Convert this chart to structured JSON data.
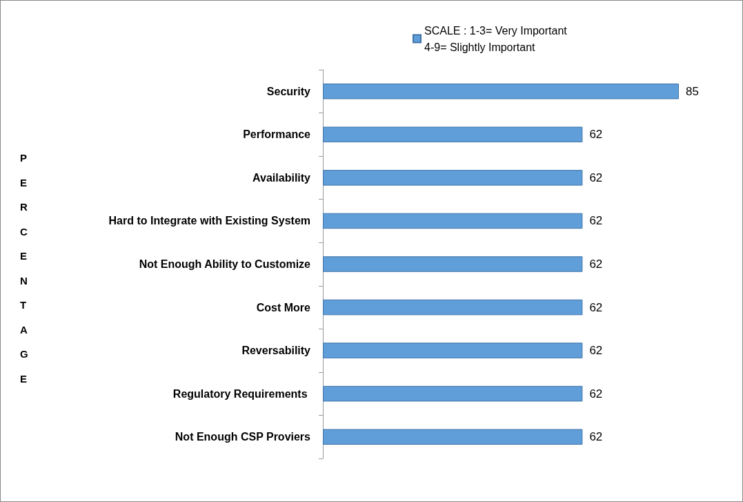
{
  "chart_data": {
    "type": "bar",
    "orientation": "horizontal",
    "ylabel": "PERCENTAGE",
    "categories": [
      "Security",
      "Performance",
      "Availability",
      "Hard to Integrate with Existing System",
      "Not Enough Ability to Customize",
      "Cost More",
      "Reversability",
      "Regulatory Requirements ",
      "Not Enough CSP Proviers"
    ],
    "series": [
      {
        "name": "SCALE : 1-3= Very Important\n4-9= Slightly Important",
        "color": "#5f9ed8",
        "values": [
          85,
          62,
          62,
          62,
          62,
          62,
          62,
          62,
          62
        ]
      }
    ],
    "data_labels": true,
    "legend": "top right",
    "tick_labels": "y"
  }
}
